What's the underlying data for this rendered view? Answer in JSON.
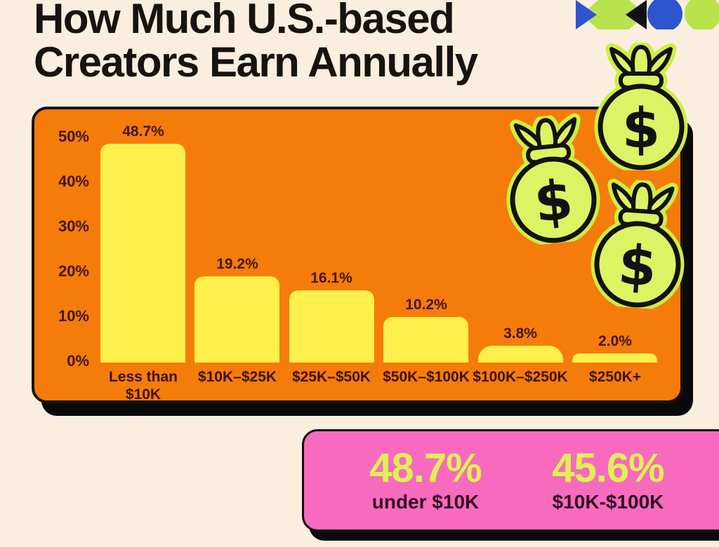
{
  "palette": {
    "background": "#FAEEDE",
    "panel_orange": "#F57C0B",
    "bar_yellow": "#FDF04C",
    "ink_black": "#141210",
    "axis_text": "#431408",
    "pink": "#F76BBE",
    "lime": "#DCF364",
    "lime_halo": "#CDEE44",
    "logo_blue": "#2D55CF",
    "logo_lime": "#B8E34D"
  },
  "header": {
    "title_line1": "How Much U.S.-based",
    "title_line2": "Creators Earn Annually"
  },
  "logo": {
    "shapes": [
      "blue-triangle",
      "lime-hexagon",
      "black-triangle",
      "blue-circle",
      "lime-circle"
    ]
  },
  "chart_data": {
    "type": "bar",
    "title": "How Much U.S.-based Creators Earn Annually",
    "categories": [
      "Less than $10K",
      "$10K–$25K",
      "$25K–$50K",
      "$50K–$100K",
      "$100K–$250K",
      "$250K+"
    ],
    "values": [
      48.7,
      19.2,
      16.1,
      10.2,
      3.8,
      2.0
    ],
    "value_labels": [
      "48.7%",
      "19.2%",
      "16.1%",
      "10.2%",
      "3.8%",
      "2.0%"
    ],
    "y_ticks": [
      "0%",
      "10%",
      "20%",
      "30%",
      "40%",
      "50%"
    ],
    "ylim": [
      0,
      50
    ],
    "xlabel": "",
    "ylabel": "",
    "grid": false,
    "legend": "none",
    "bar_color": "#FDF04C",
    "panel_color": "#F57C0B"
  },
  "highlights": {
    "items": [
      {
        "value": "48.7%",
        "label": "under $10K"
      },
      {
        "value": "45.6%",
        "label": "$10K-$100K"
      }
    ]
  },
  "decorations": {
    "money_bag_symbol": "$",
    "money_bag_count": 3
  }
}
